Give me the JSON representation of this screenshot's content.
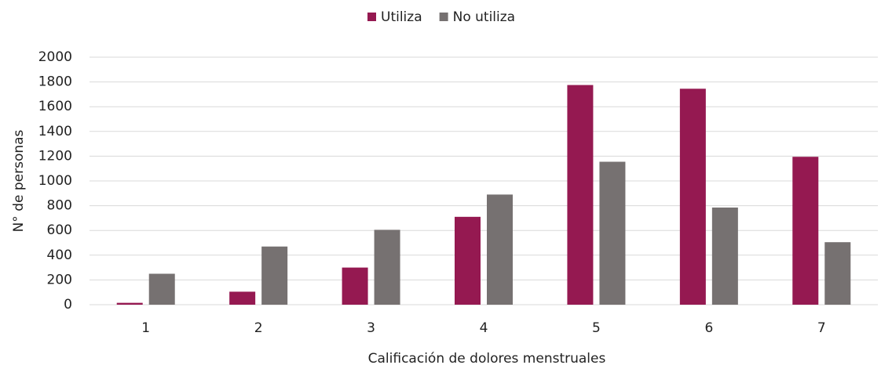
{
  "chart_data": {
    "type": "bar",
    "xlabel": "Calificación de dolores menstruales",
    "ylabel": "N° de personas",
    "categories": [
      "1",
      "2",
      "3",
      "4",
      "5",
      "6",
      "7"
    ],
    "series": [
      {
        "name": "Utiliza",
        "color": "#951951",
        "values": [
          15,
          105,
          300,
          710,
          1775,
          1745,
          1195
        ]
      },
      {
        "name": "No utiliza",
        "color": "#767171",
        "values": [
          250,
          470,
          605,
          890,
          1155,
          785,
          505
        ]
      }
    ],
    "ylim": [
      0,
      2000
    ],
    "yticks": [
      0,
      200,
      400,
      600,
      800,
      1000,
      1200,
      1400,
      1600,
      1800,
      2000
    ],
    "grid": true,
    "legend": "top"
  }
}
